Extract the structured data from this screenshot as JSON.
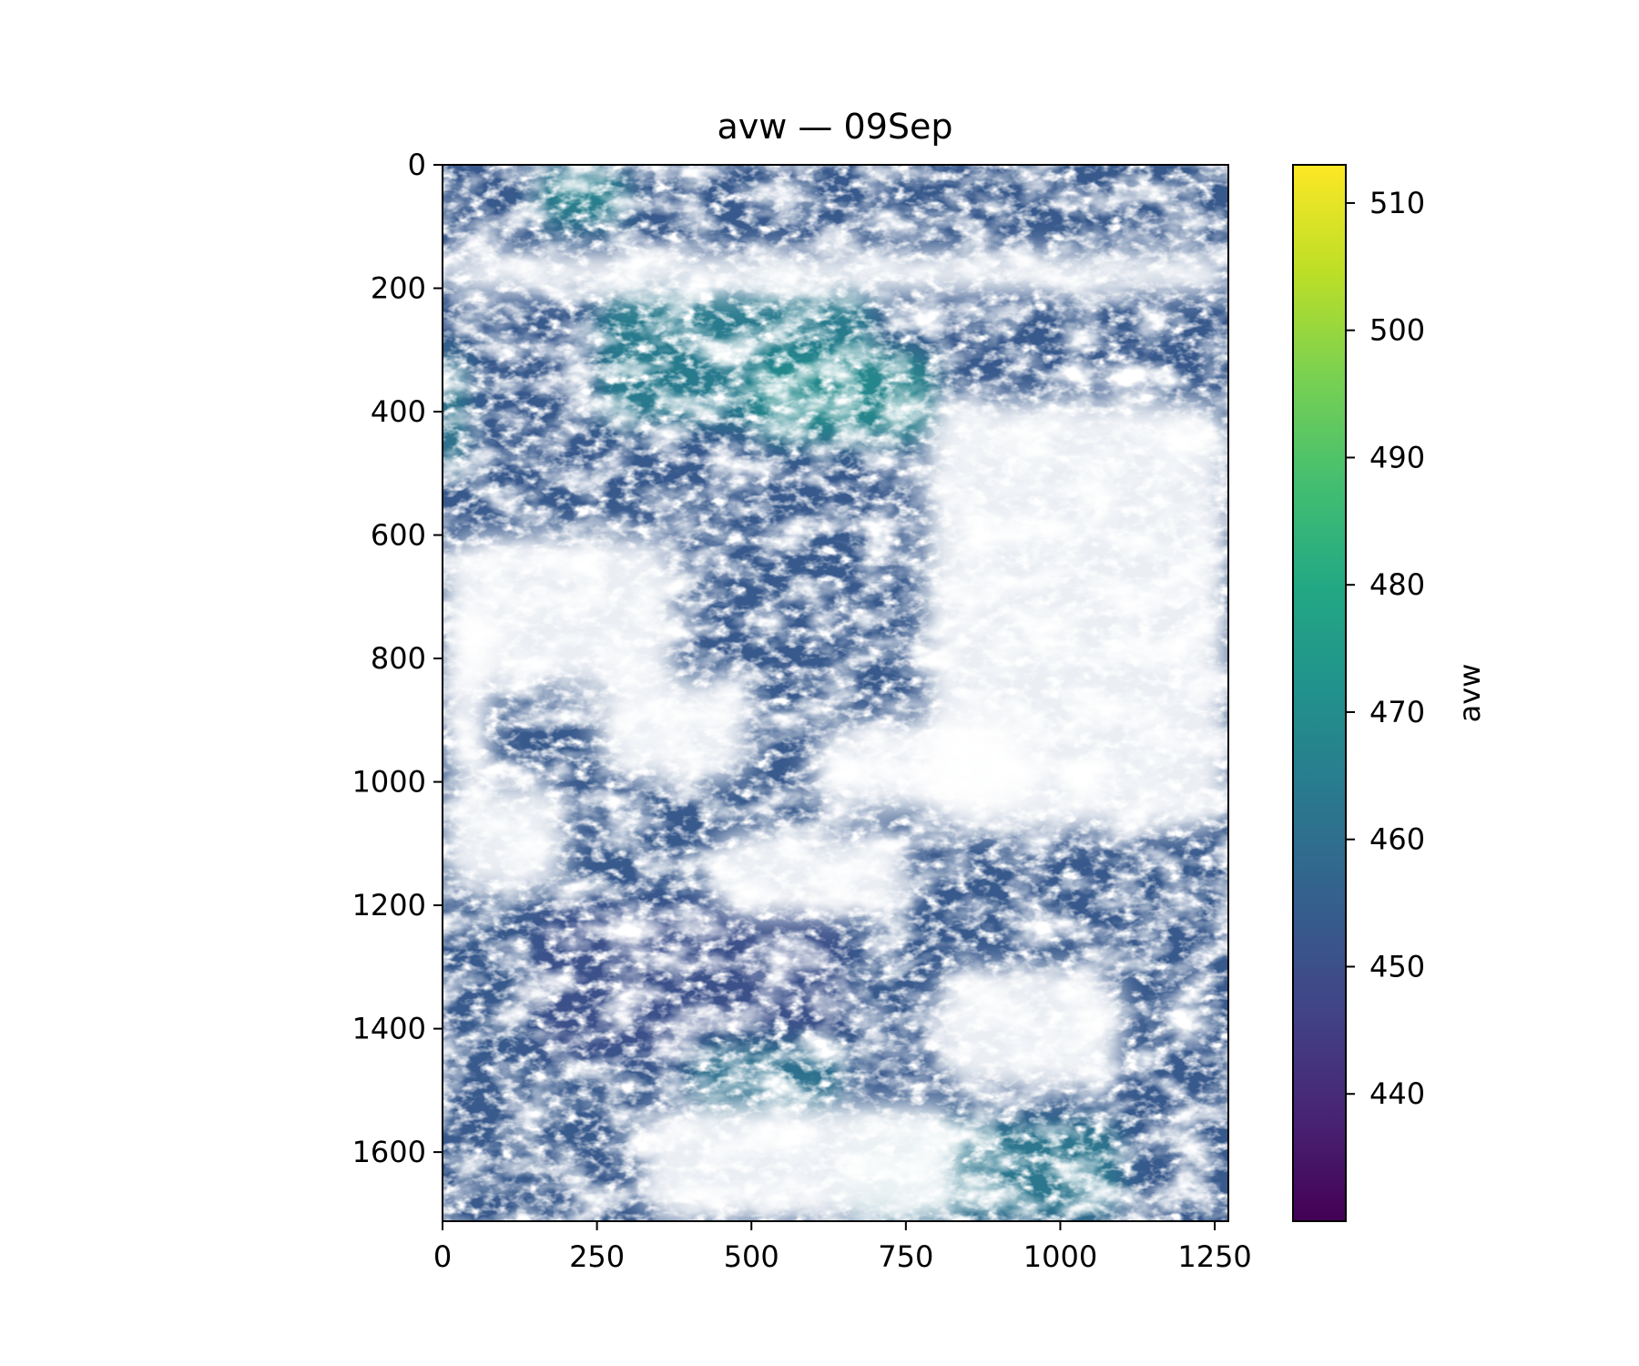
{
  "chart_data": {
    "type": "heatmap",
    "title": "avw — 09Sep",
    "xlabel": "",
    "ylabel": "",
    "xlim": [
      0,
      1272
    ],
    "ylim": [
      1712,
      0
    ],
    "x_ticks": [
      0,
      250,
      500,
      750,
      1000,
      1250
    ],
    "y_ticks": [
      0,
      200,
      400,
      600,
      800,
      1000,
      1200,
      1400,
      1600
    ],
    "colorbar": {
      "label": "avw",
      "range": [
        430,
        513
      ],
      "ticks": [
        440,
        450,
        460,
        470,
        480,
        490,
        500,
        510
      ],
      "colormap": "viridis"
    },
    "grid": false,
    "nan_color": "#ffffff",
    "dominant_value": 453,
    "regions": [
      {
        "x": [
          0,
          1272
        ],
        "y": [
          0,
          1712
        ],
        "value": 452
      },
      {
        "x": [
          150,
          650
        ],
        "y": [
          1200,
          1450
        ],
        "value": 450
      },
      {
        "x": [
          0,
          300
        ],
        "y": [
          1450,
          1712
        ],
        "value": 453
      },
      {
        "x": [
          250,
          700
        ],
        "y": [
          200,
          420
        ],
        "value": 466
      },
      {
        "x": [
          500,
          800
        ],
        "y": [
          300,
          450
        ],
        "value": 470
      },
      {
        "x": [
          150,
          300
        ],
        "y": [
          0,
          100
        ],
        "value": 468
      },
      {
        "x": [
          650,
          1100
        ],
        "y": [
          1550,
          1712
        ],
        "value": 465
      },
      {
        "x": [
          0,
          30
        ],
        "y": [
          300,
          500
        ],
        "value": 472
      },
      {
        "x": [
          400,
          650
        ],
        "y": [
          1420,
          1540
        ],
        "value": 462
      }
    ],
    "cloud_masks": [
      {
        "x": [
          0,
          1272
        ],
        "y": [
          140,
          210
        ]
      },
      {
        "x": [
          780,
          1272
        ],
        "y": [
          380,
          1080
        ]
      },
      {
        "x": [
          0,
          380
        ],
        "y": [
          600,
          850
        ]
      },
      {
        "x": [
          430,
          760
        ],
        "y": [
          1080,
          1220
        ]
      },
      {
        "x": [
          0,
          200
        ],
        "y": [
          1000,
          1180
        ]
      },
      {
        "x": [
          800,
          1100
        ],
        "y": [
          1300,
          1500
        ]
      },
      {
        "x": [
          320,
          840
        ],
        "y": [
          1520,
          1712
        ]
      },
      {
        "x": [
          250,
          500
        ],
        "y": [
          830,
          1000
        ]
      },
      {
        "x": [
          600,
          950
        ],
        "y": [
          900,
          1050
        ]
      },
      {
        "x": [
          0,
          80
        ],
        "y": [
          700,
          1000
        ]
      }
    ]
  }
}
